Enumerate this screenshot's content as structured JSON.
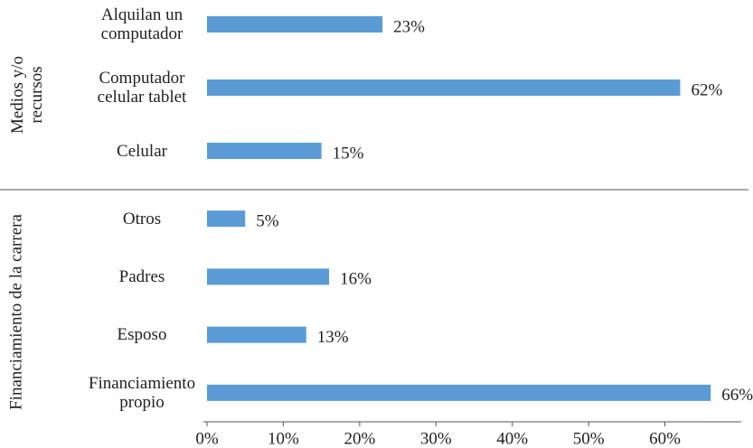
{
  "chart_data": {
    "type": "bar",
    "orientation": "horizontal",
    "color": "#5b9bd5",
    "groups": [
      {
        "name": "Medios y/o recursos",
        "categories": [
          "Alquilan un computador",
          "Computador celular tablet",
          "Celular"
        ],
        "values": [
          23,
          62,
          15
        ],
        "value_labels": [
          "23%",
          "62%",
          "15%"
        ]
      },
      {
        "name": "Financiamiento de la carrera",
        "categories": [
          "Otros",
          "Padres",
          "Esposo",
          "Financiamiento propio"
        ],
        "values": [
          5,
          16,
          13,
          66
        ],
        "value_labels": [
          "5%",
          "16%",
          "13%",
          "66%"
        ]
      }
    ],
    "xlim": [
      0,
      70
    ],
    "xticks": [
      {
        "value": 0,
        "label": "0%"
      },
      {
        "value": 10,
        "label": "10%"
      },
      {
        "value": 20,
        "label": "20%"
      },
      {
        "value": 30,
        "label": "30%"
      },
      {
        "value": 40,
        "label": "40%"
      },
      {
        "value": 50,
        "label": "50%"
      },
      {
        "value": 60,
        "label": "60%"
      }
    ]
  }
}
